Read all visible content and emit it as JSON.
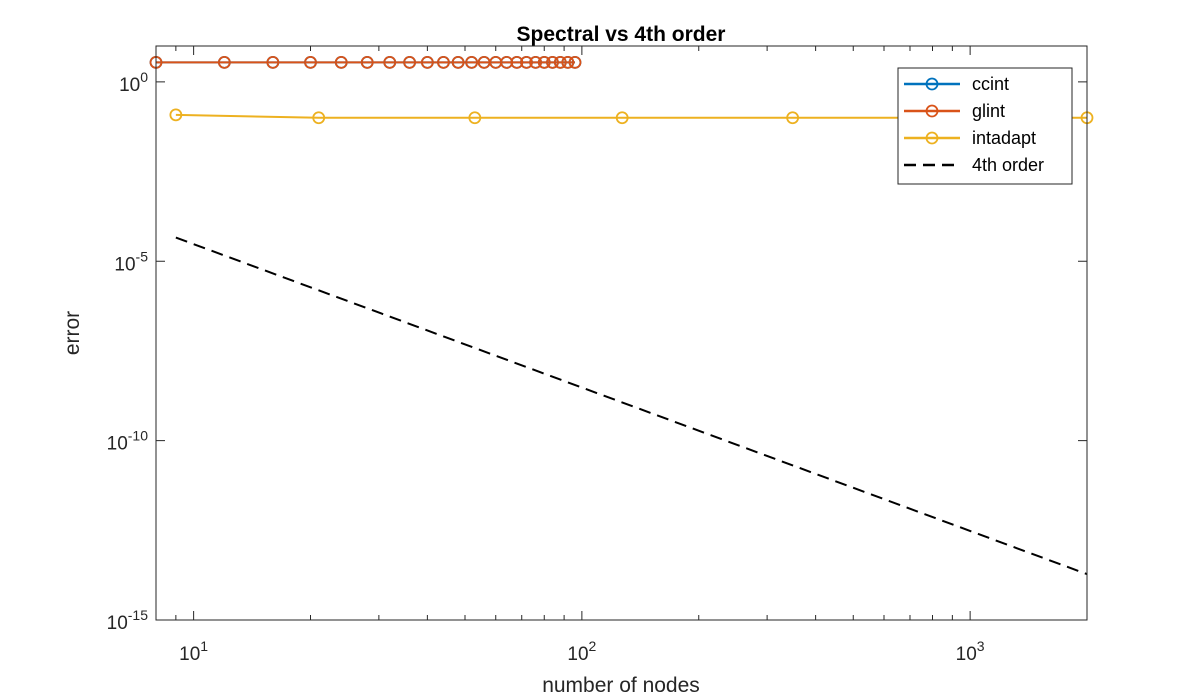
{
  "chart_data": {
    "type": "line",
    "title": "Spectral vs 4th order",
    "xlabel": "number of nodes",
    "ylabel": "error",
    "xscale": "log",
    "yscale": "log",
    "xlim": [
      8,
      2000
    ],
    "ylim": [
      1e-15,
      10
    ],
    "x_ticks": [
      {
        "value": 10,
        "base": "10",
        "exp": "1"
      },
      {
        "value": 100,
        "base": "10",
        "exp": "2"
      },
      {
        "value": 1000,
        "base": "10",
        "exp": "3"
      }
    ],
    "y_ticks": [
      {
        "value": 1,
        "base": "10",
        "exp": "0"
      },
      {
        "value": 1e-05,
        "base": "10",
        "exp": "-5"
      },
      {
        "value": 1e-10,
        "base": "10",
        "exp": "-10"
      },
      {
        "value": 1e-15,
        "base": "10",
        "exp": "-15"
      }
    ],
    "grid": false,
    "legend_position": "top-right",
    "series": [
      {
        "name": "ccint",
        "color": "#0072BD",
        "marker": "circle",
        "style": "solid",
        "x": [
          8,
          12,
          16,
          20,
          24,
          28,
          32,
          36,
          40,
          44,
          48,
          52,
          56,
          60,
          64,
          68,
          72,
          76,
          80,
          84,
          88,
          92,
          96
        ],
        "y": [
          3.5,
          3.5,
          3.5,
          3.5,
          3.5,
          3.5,
          3.5,
          3.5,
          3.5,
          3.5,
          3.5,
          3.5,
          3.5,
          3.5,
          3.5,
          3.5,
          3.5,
          3.5,
          3.5,
          3.5,
          3.5,
          3.5,
          3.5
        ]
      },
      {
        "name": "glint",
        "color": "#D95319",
        "marker": "circle",
        "style": "solid",
        "x": [
          8,
          12,
          16,
          20,
          24,
          28,
          32,
          36,
          40,
          44,
          48,
          52,
          56,
          60,
          64,
          68,
          72,
          76,
          80,
          84,
          88,
          92,
          96
        ],
        "y": [
          3.5,
          3.5,
          3.5,
          3.5,
          3.5,
          3.5,
          3.5,
          3.5,
          3.5,
          3.5,
          3.5,
          3.5,
          3.5,
          3.5,
          3.5,
          3.5,
          3.5,
          3.5,
          3.5,
          3.5,
          3.5,
          3.5,
          3.5
        ]
      },
      {
        "name": "intadapt",
        "color": "#EDB120",
        "marker": "circle",
        "style": "solid",
        "x": [
          9,
          21,
          53,
          127,
          349,
          2000
        ],
        "y": [
          0.12,
          0.1,
          0.1,
          0.1,
          0.1,
          0.1
        ]
      },
      {
        "name": "4th order",
        "color": "#000000",
        "marker": "none",
        "style": "dashed",
        "x": [
          9,
          2000
        ],
        "y": [
          4.57e-05,
          1.9e-14
        ]
      }
    ]
  }
}
